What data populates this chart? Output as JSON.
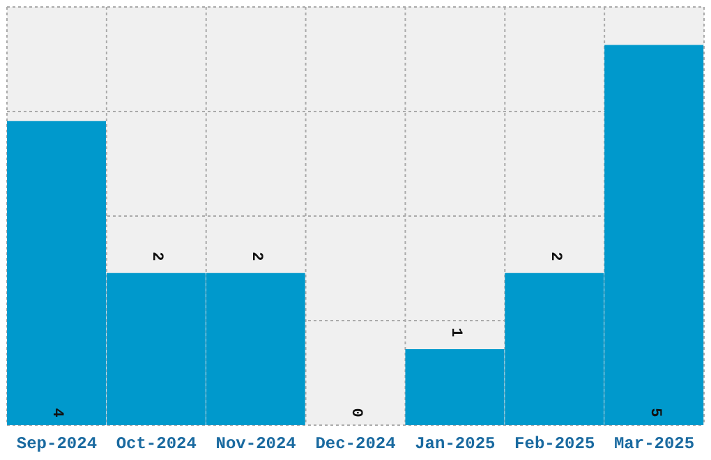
{
  "chart_data": {
    "type": "bar",
    "categories": [
      "Sep-2024",
      "Oct-2024",
      "Nov-2024",
      "Dec-2024",
      "Jan-2025",
      "Feb-2025",
      "Mar-2025"
    ],
    "values": [
      4,
      2,
      2,
      0,
      1,
      2,
      5
    ],
    "color": "#0099cc",
    "ylim": [
      0,
      5.5
    ],
    "data_labels": true,
    "grid": true,
    "tick_labels": "x"
  }
}
